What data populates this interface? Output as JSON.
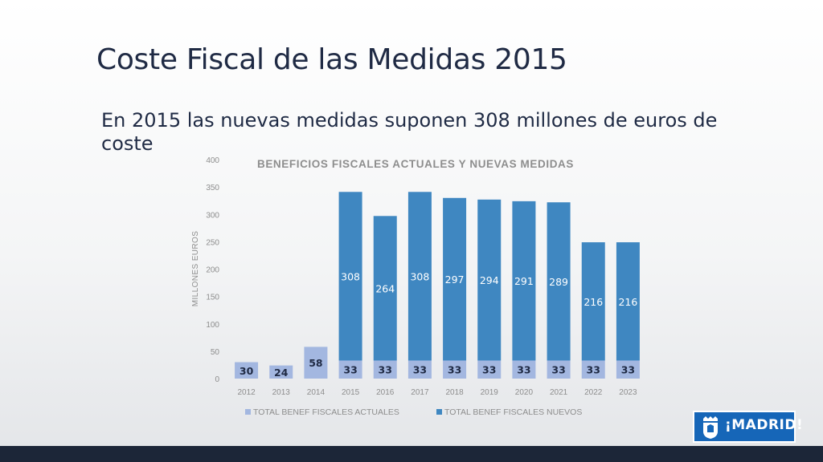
{
  "slide": {
    "title": "Coste Fiscal de las Medidas 2015",
    "subtitle": "En 2015 las nuevas medidas suponen 308 millones de euros de coste"
  },
  "logo": {
    "text": "¡MADRID!",
    "icon": "madrid-coat-of-arms-icon"
  },
  "chart_data": {
    "type": "bar",
    "stacked": true,
    "title": "BENEFICIOS FISCALES ACTUALES Y NUEVAS MEDIDAS",
    "ylabel": "MILLONES EUROS",
    "xlabel": "",
    "ylim": [
      0,
      400
    ],
    "yticks": [
      "0",
      "50",
      "100",
      "150",
      "200",
      "250",
      "300",
      "350",
      "400"
    ],
    "categories": [
      "2012",
      "2013",
      "2014",
      "2015",
      "2016",
      "2017",
      "2018",
      "2019",
      "2020",
      "2021",
      "2022",
      "2023"
    ],
    "series": [
      {
        "name": "TOTAL BENEF FISCALES ACTUALES",
        "color": "#a3b7e0",
        "values": [
          30,
          24,
          58,
          33,
          33,
          33,
          33,
          33,
          33,
          33,
          33,
          33
        ]
      },
      {
        "name": "TOTAL BENEF FISCALES NUEVOS",
        "color": "#3f87c1",
        "values": [
          0,
          0,
          0,
          308,
          264,
          308,
          297,
          294,
          291,
          289,
          216,
          216
        ]
      }
    ],
    "legend_position": "bottom",
    "grid": false
  }
}
